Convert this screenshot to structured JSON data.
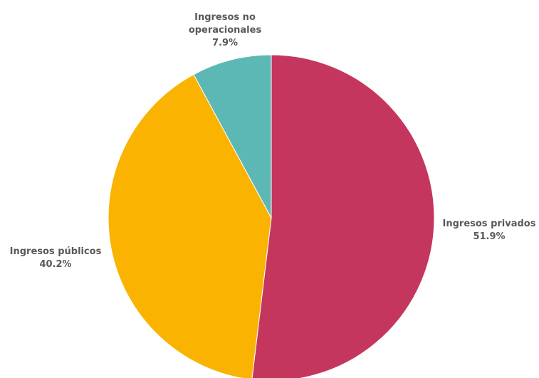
{
  "chart_data": {
    "type": "pie",
    "title": "",
    "start_angle_deg": 0,
    "direction": "clockwise",
    "slices": [
      {
        "label_lines": [
          "Ingresos privados"
        ],
        "value": 51.9,
        "value_label": "51.9%",
        "color": "#c5365f"
      },
      {
        "label_lines": [
          "Ingresos públicos"
        ],
        "value": 40.2,
        "value_label": "40.2%",
        "color": "#f9b300"
      },
      {
        "label_lines": [
          "Ingresos no",
          "operacionales"
        ],
        "value": 7.9,
        "value_label": "7.9%",
        "color": "#5cb8b4"
      }
    ],
    "legend": "none",
    "label_placement": "outside"
  }
}
